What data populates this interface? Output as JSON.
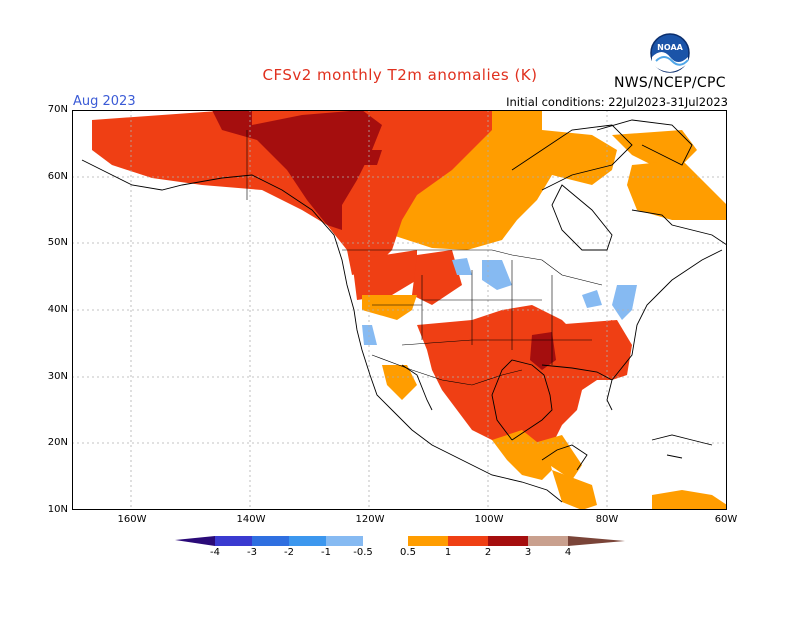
{
  "header": {
    "title": "CFSv2 monthly T2m anomalies (K)",
    "agency": "NWS/NCEP/CPC",
    "valid_month": "Aug 2023",
    "initial_conditions": "Initial conditions: 22Jul2023-31Jul2023",
    "logo_text": "NOAA"
  },
  "map": {
    "lon_range": [
      -170,
      -60
    ],
    "lat_range": [
      10,
      70
    ],
    "grid": "dotted",
    "lat_ticks": [
      "70N",
      "60N",
      "50N",
      "40N",
      "30N",
      "20N",
      "10N"
    ],
    "lon_ticks": [
      "160W",
      "140W",
      "120W",
      "100W",
      "80W",
      "60W"
    ],
    "anomaly_regions": [
      {
        "region": "Alaska / Yukon / NW Canada",
        "category": "2 to 3"
      },
      {
        "region": "Northern Canada / Arctic coast",
        "category": "1 to 2"
      },
      {
        "region": "Hudson Bay / Quebec / Labrador",
        "category": "0.5 to 1"
      },
      {
        "region": "Pacific Northwest US",
        "category": "1 to 2"
      },
      {
        "region": "Northern Plains",
        "category": "-1 to -0.5"
      },
      {
        "region": "Mid-Atlantic coast",
        "category": "-1 to -0.5"
      },
      {
        "region": "Texas / Southern Plains",
        "category": "1 to 2"
      },
      {
        "region": "Lower Mississippi Valley",
        "category": "2 to 3"
      },
      {
        "region": "Southeast US",
        "category": "1 to 2"
      },
      {
        "region": "Mexico",
        "category": "1 to 2"
      },
      {
        "region": "Central America / Yucatan",
        "category": "0.5 to 1"
      }
    ]
  },
  "colorbar": {
    "labels": [
      "-4",
      "-3",
      "-2",
      "-1",
      "-0.5",
      "0.5",
      "1",
      "2",
      "3",
      "4"
    ],
    "colors": {
      "lt_-4": "#2a0a78",
      "-4_-3": "#3a3ad0",
      "-3_-2": "#2f6fe0",
      "-2_-1": "#3c97ee",
      "-1_-0.5": "#86baf2",
      "-0.5_0.5": "#ffffff",
      "0.5_1": "#ff9d00",
      "1_2": "#ef3f14",
      "2_3": "#a50e0e",
      "3_4": "#c9a08e",
      "gt_4": "#7a4438"
    }
  }
}
